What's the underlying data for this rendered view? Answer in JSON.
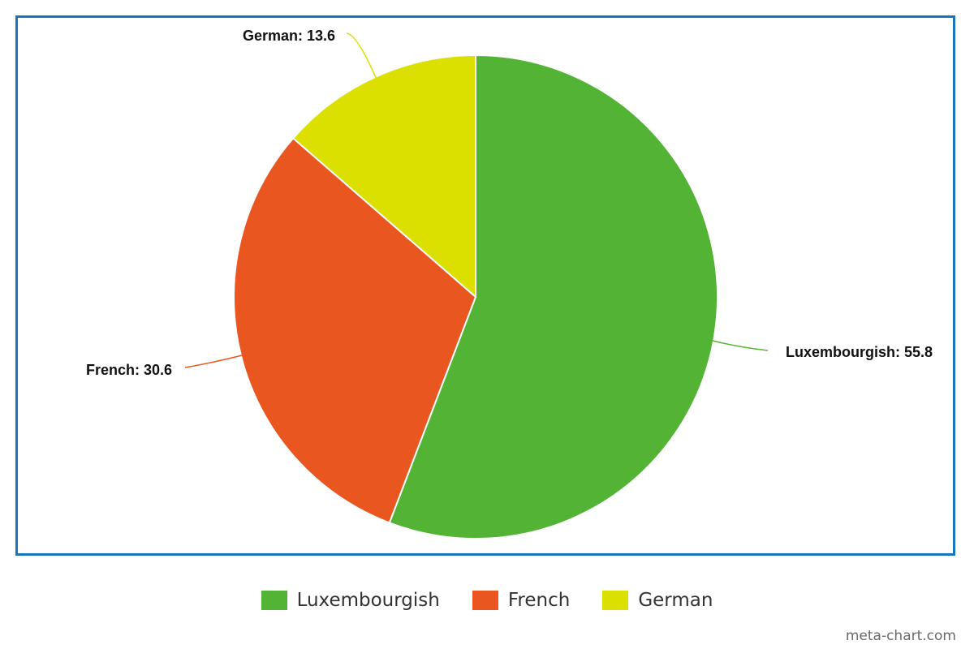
{
  "chart_data": {
    "type": "pie",
    "title": "",
    "slices": [
      {
        "label": "Luxembourgish",
        "value": 55.8,
        "color": "#52b334",
        "data_label": "Luxembourgish: 55.8"
      },
      {
        "label": "French",
        "value": 30.6,
        "color": "#ea561f",
        "data_label": "French: 30.6"
      },
      {
        "label": "German",
        "value": 13.6,
        "color": "#dbe000",
        "data_label": "German: 13.6"
      }
    ],
    "legend_position": "bottom-center",
    "frame_color": "#1a76bb"
  },
  "legend": {
    "items": [
      {
        "label": "Luxembourgish",
        "color": "#52b334"
      },
      {
        "label": "French",
        "color": "#ea561f"
      },
      {
        "label": "German",
        "color": "#dbe000"
      }
    ]
  },
  "watermark": "meta-chart.com"
}
